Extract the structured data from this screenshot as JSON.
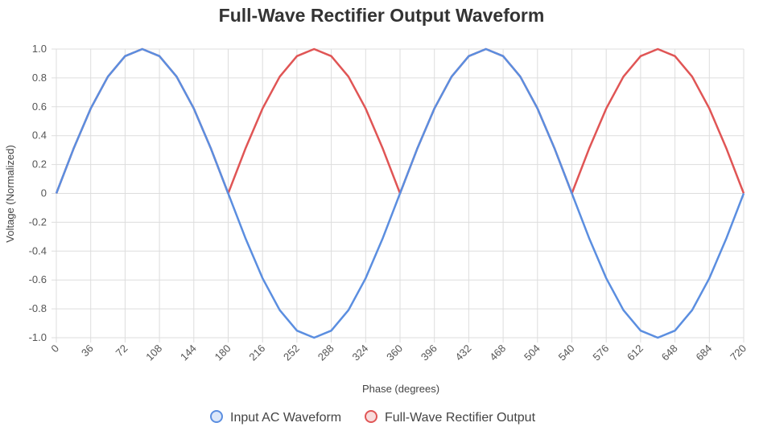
{
  "chart_data": {
    "type": "line",
    "title": "Full-Wave Rectifier Output Waveform",
    "xlabel": "Phase (degrees)",
    "ylabel": "Voltage (Normalized)",
    "xlim": [
      0,
      720
    ],
    "ylim": [
      -1.0,
      1.0
    ],
    "grid": true,
    "legend_position": "bottom",
    "x": [
      0,
      18,
      36,
      54,
      72,
      90,
      108,
      126,
      144,
      162,
      180,
      198,
      216,
      234,
      252,
      270,
      288,
      306,
      324,
      342,
      360,
      378,
      396,
      414,
      432,
      450,
      468,
      486,
      504,
      522,
      540,
      558,
      576,
      594,
      612,
      630,
      648,
      666,
      684,
      702,
      720
    ],
    "x_tick_labels": [
      "0",
      "36",
      "72",
      "108",
      "144",
      "180",
      "216",
      "252",
      "288",
      "324",
      "360",
      "396",
      "432",
      "468",
      "504",
      "540",
      "576",
      "612",
      "648",
      "684",
      "720"
    ],
    "y_tick_labels": [
      "1.0",
      "0.8",
      "0.6",
      "0.4",
      "0.2",
      "0",
      "-0.2",
      "-0.4",
      "-0.6",
      "-0.8",
      "-1.0"
    ],
    "series": [
      {
        "name": "Full-Wave Rectifier Output",
        "color": "#e05555",
        "values": [
          0,
          0.309,
          0.588,
          0.809,
          0.951,
          1.0,
          0.951,
          0.809,
          0.588,
          0.309,
          0,
          0.309,
          0.588,
          0.809,
          0.951,
          1.0,
          0.951,
          0.809,
          0.588,
          0.309,
          0,
          0.309,
          0.588,
          0.809,
          0.951,
          1.0,
          0.951,
          0.809,
          0.588,
          0.309,
          0,
          0.309,
          0.588,
          0.809,
          0.951,
          1.0,
          0.951,
          0.809,
          0.588,
          0.309,
          0
        ]
      },
      {
        "name": "Input AC Waveform",
        "color": "#5b8ee0",
        "values": [
          0,
          0.309,
          0.588,
          0.809,
          0.951,
          1.0,
          0.951,
          0.809,
          0.588,
          0.309,
          0,
          -0.309,
          -0.588,
          -0.809,
          -0.951,
          -1.0,
          -0.951,
          -0.809,
          -0.588,
          -0.309,
          0,
          0.309,
          0.588,
          0.809,
          0.951,
          1.0,
          0.951,
          0.809,
          0.588,
          0.309,
          0,
          -0.309,
          -0.588,
          -0.809,
          -0.951,
          -1.0,
          -0.951,
          -0.809,
          -0.588,
          -0.309,
          0
        ]
      }
    ],
    "legend": [
      "Input AC Waveform",
      "Full-Wave Rectifier Output"
    ]
  }
}
